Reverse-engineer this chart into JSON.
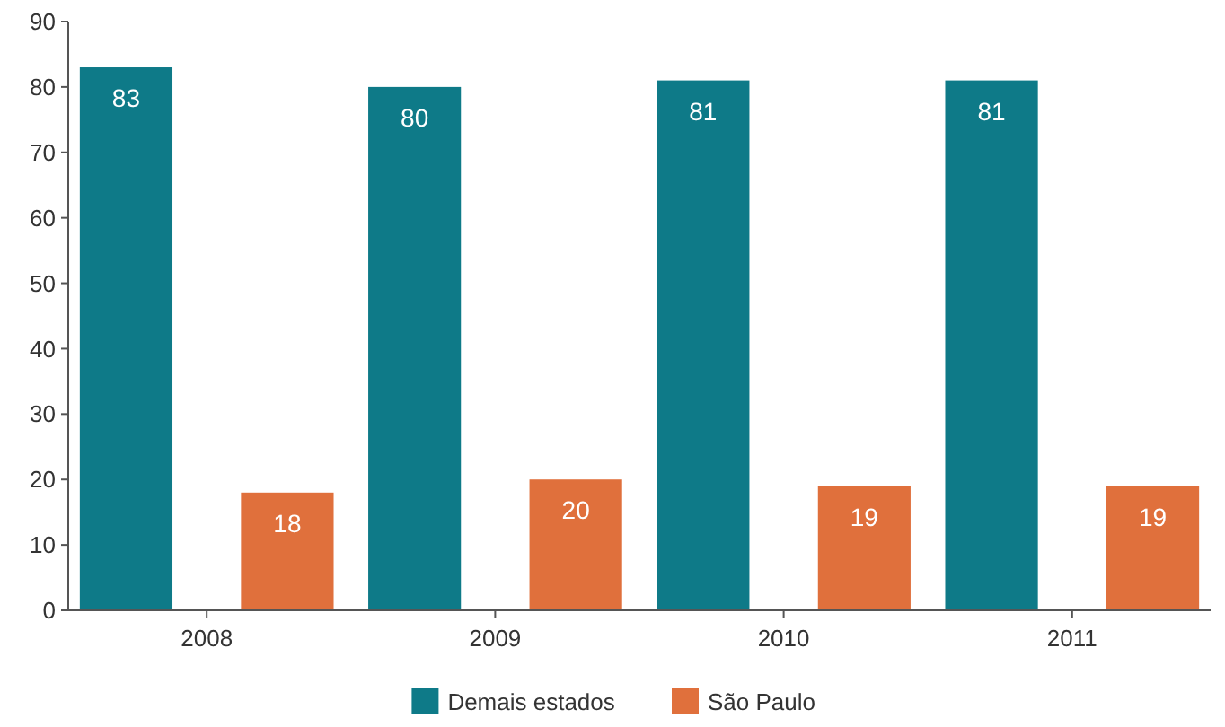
{
  "chart_data": {
    "type": "bar",
    "categories": [
      "2008",
      "2009",
      "2010",
      "2011"
    ],
    "series": [
      {
        "name": "Demais estados",
        "color": "#0e7a88",
        "values": [
          83,
          80,
          81,
          81
        ]
      },
      {
        "name": "São Paulo",
        "color": "#e0703c",
        "values": [
          18,
          20,
          19,
          19
        ]
      }
    ],
    "ylim": [
      0,
      90
    ],
    "yticks": [
      0,
      10,
      20,
      30,
      40,
      50,
      60,
      70,
      80,
      90
    ],
    "grid": false,
    "legend": "bottom",
    "data_labels": true
  }
}
